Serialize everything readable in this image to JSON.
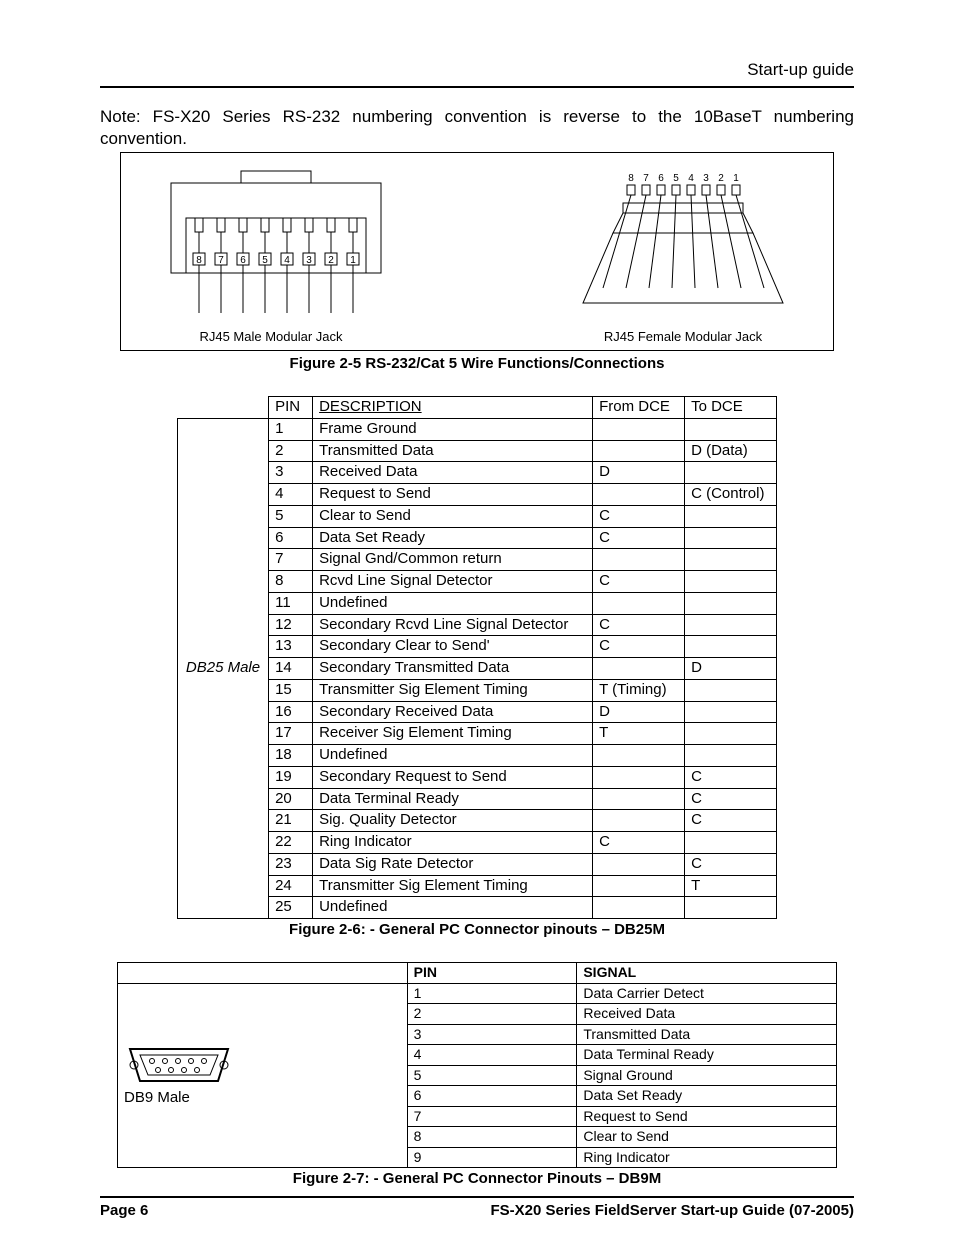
{
  "header": {
    "section": "Start-up guide"
  },
  "note": "Note: FS-X20 Series RS-232 numbering convention is reverse to the 10BaseT numbering convention.",
  "figure25": {
    "male_label": "RJ45 Male Modular Jack",
    "female_label": "RJ45 Female Modular Jack",
    "caption": "Figure 2-5 RS-232/Cat 5 Wire Functions/Connections",
    "pin_labels": [
      "8",
      "7",
      "6",
      "5",
      "4",
      "3",
      "2",
      "1"
    ]
  },
  "table_db25": {
    "header": {
      "pin": "PIN",
      "desc": "DESCRIPTION",
      "from": "From DCE",
      "to": "To DCE"
    },
    "row_label": "DB25 Male",
    "rows": [
      {
        "pin": "1",
        "desc": "Frame Ground",
        "from": "",
        "to": ""
      },
      {
        "pin": "2",
        "desc": "Transmitted Data",
        "from": "",
        "to": "D (Data)"
      },
      {
        "pin": "3",
        "desc": "Received Data",
        "from": "D",
        "to": ""
      },
      {
        "pin": "4",
        "desc": "Request to Send",
        "from": "",
        "to": "C (Control)"
      },
      {
        "pin": "5",
        "desc": "Clear to Send",
        "from": "C",
        "to": ""
      },
      {
        "pin": "6",
        "desc": "Data Set Ready",
        "from": "C",
        "to": ""
      },
      {
        "pin": "7",
        "desc": "Signal Gnd/Common return",
        "from": "",
        "to": ""
      },
      {
        "pin": "8",
        "desc": "Rcvd Line Signal Detector",
        "from": "C",
        "to": ""
      },
      {
        "pin": "11",
        "desc": "Undefined",
        "from": "",
        "to": ""
      },
      {
        "pin": "12",
        "desc": "Secondary Rcvd Line Signal Detector",
        "from": "C",
        "to": ""
      },
      {
        "pin": "13",
        "desc": "Secondary Clear to Send'",
        "from": "C",
        "to": ""
      },
      {
        "pin": "14",
        "desc": "Secondary Transmitted Data",
        "from": "",
        "to": "D"
      },
      {
        "pin": "15",
        "desc": "Transmitter Sig Element Timing",
        "from": "T (Timing)",
        "to": ""
      },
      {
        "pin": "16",
        "desc": "Secondary Received Data",
        "from": "D",
        "to": ""
      },
      {
        "pin": "17",
        "desc": "Receiver Sig Element Timing",
        "from": "T",
        "to": ""
      },
      {
        "pin": "18",
        "desc": "Undefined",
        "from": "",
        "to": ""
      },
      {
        "pin": "19",
        "desc": "Secondary Request to Send",
        "from": "",
        "to": "C"
      },
      {
        "pin": "20",
        "desc": "Data Terminal Ready",
        "from": "",
        "to": "C"
      },
      {
        "pin": "21",
        "desc": "Sig. Quality Detector",
        "from": "",
        "to": "C"
      },
      {
        "pin": "22",
        "desc": "Ring Indicator",
        "from": "C",
        "to": ""
      },
      {
        "pin": "23",
        "desc": "Data Sig Rate Detector",
        "from": "",
        "to": "C"
      },
      {
        "pin": "24",
        "desc": "Transmitter Sig Element Timing",
        "from": "",
        "to": "T"
      },
      {
        "pin": "25",
        "desc": "Undefined",
        "from": "",
        "to": ""
      }
    ],
    "caption": "Figure 2-6: - General PC Connector pinouts – DB25M"
  },
  "table_db9": {
    "header": {
      "pin": "PIN",
      "signal": "SIGNAL"
    },
    "row_label": "DB9 Male",
    "rows": [
      {
        "pin": "1",
        "signal": "Data Carrier Detect"
      },
      {
        "pin": "2",
        "signal": "Received Data"
      },
      {
        "pin": "3",
        "signal": "Transmitted Data"
      },
      {
        "pin": "4",
        "signal": "Data Terminal Ready"
      },
      {
        "pin": "5",
        "signal": "Signal Ground"
      },
      {
        "pin": "6",
        "signal": "Data Set Ready"
      },
      {
        "pin": "7",
        "signal": "Request to Send"
      },
      {
        "pin": "8",
        "signal": "Clear to Send"
      },
      {
        "pin": "9",
        "signal": "Ring Indicator"
      }
    ],
    "caption": "Figure 2-7: - General PC Connector Pinouts – DB9M"
  },
  "footer": {
    "left": "Page 6",
    "right": "FS-X20 Series FieldServer Start-up Guide (07-2005)"
  },
  "style": {
    "background": "#ffffff",
    "text_color": "#000000",
    "rule_color": "#000000",
    "body_fontsize_pt": 12,
    "header_fontsize_pt": 12,
    "caption_fontsize_pt": 11,
    "table_fontsize_pt": 11
  }
}
